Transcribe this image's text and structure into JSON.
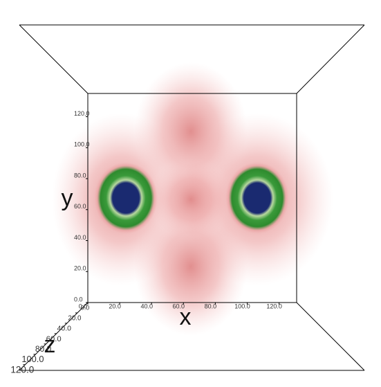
{
  "chart_data": {
    "type": "volume",
    "x_label": "x",
    "y_label": "y",
    "z_label": "z",
    "xlim": [
      0,
      131
    ],
    "ylim": [
      0,
      135
    ],
    "zlim": [
      0,
      131
    ],
    "xticks": [
      {
        "value": 0,
        "label": "0.0"
      },
      {
        "value": 20,
        "label": "20.0"
      },
      {
        "value": 40,
        "label": "40.0"
      },
      {
        "value": 60,
        "label": "60.0"
      },
      {
        "value": 80,
        "label": "80.0"
      },
      {
        "value": 100,
        "label": "100.0"
      },
      {
        "value": 120,
        "label": "120.0"
      }
    ],
    "yticks": [
      {
        "value": 0,
        "label": "0.0"
      },
      {
        "value": 20,
        "label": "20.0"
      },
      {
        "value": 40,
        "label": "40.0"
      },
      {
        "value": 60,
        "label": "60.0"
      },
      {
        "value": 80,
        "label": "80.0"
      },
      {
        "value": 100,
        "label": "100.0"
      },
      {
        "value": 120,
        "label": "120.0"
      }
    ],
    "zticks": [
      {
        "value": 0,
        "label": "0.0"
      },
      {
        "value": 20,
        "label": "20.0"
      },
      {
        "value": 40,
        "label": "40.0"
      },
      {
        "value": 60,
        "label": "60.0"
      },
      {
        "value": 80,
        "label": "80.0"
      },
      {
        "value": 100,
        "label": "100.0"
      },
      {
        "value": 120,
        "label": "120.0"
      }
    ]
  }
}
